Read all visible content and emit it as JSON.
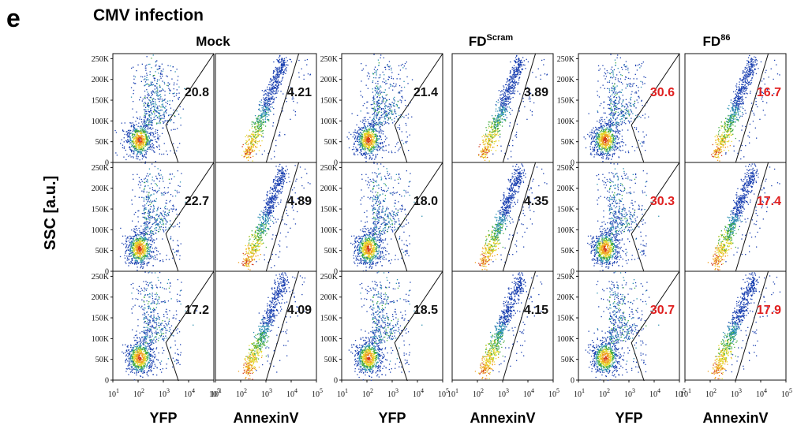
{
  "panel_letter": "e",
  "figure_title": "CMV infection",
  "groups": [
    {
      "label": "Mock",
      "sup": ""
    },
    {
      "label": "FD",
      "sup": "Scram"
    },
    {
      "label": "FD",
      "sup": "86"
    }
  ],
  "y_axis_label": "SSC [a.u.]",
  "x_axis_labels": [
    "YFP",
    "AnnexinV",
    "YFP",
    "AnnexinV",
    "YFP",
    "AnnexinV"
  ],
  "y_tick_labels": [
    "250K",
    "200K",
    "150K",
    "100K",
    "50K",
    "0"
  ],
  "x_tick_labels": [
    {
      "base": "10",
      "exp": "1"
    },
    {
      "base": "10",
      "exp": "2"
    },
    {
      "base": "10",
      "exp": "3"
    },
    {
      "base": "10",
      "exp": "4"
    },
    {
      "base": "10",
      "exp": "5"
    }
  ],
  "colors": {
    "normal_value": "#111111",
    "highlight_value": "#e02020",
    "gate": "#111111"
  },
  "chart_data": {
    "type": "scatter",
    "title": "CMV infection",
    "ylabel": "SSC [a.u.]",
    "x_scale": "log",
    "xlim": [
      10,
      100000
    ],
    "ylim": [
      0,
      262144
    ],
    "columns": [
      {
        "group": "Mock",
        "marker": "YFP"
      },
      {
        "group": "Mock",
        "marker": "AnnexinV"
      },
      {
        "group": "FDScram",
        "marker": "YFP"
      },
      {
        "group": "FDScram",
        "marker": "AnnexinV"
      },
      {
        "group": "FD86",
        "marker": "YFP"
      },
      {
        "group": "FD86",
        "marker": "AnnexinV"
      }
    ],
    "gate_percentages": [
      [
        "20.8",
        "4.21",
        "21.4",
        "3.89",
        "30.6",
        "16.7"
      ],
      [
        "22.7",
        "4.89",
        "18.0",
        "4.35",
        "30.3",
        "17.4"
      ],
      [
        "17.2",
        "4.09",
        "18.5",
        "4.15",
        "30.7",
        "17.9"
      ]
    ],
    "highlighted_columns": [
      4,
      5
    ]
  }
}
